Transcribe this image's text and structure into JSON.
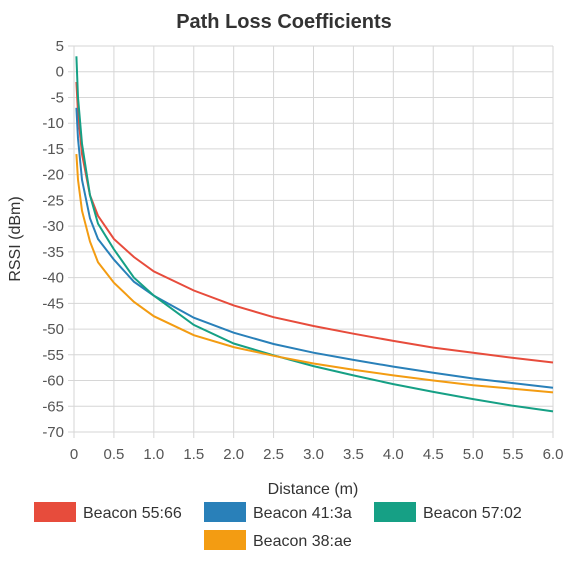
{
  "chart_data": {
    "type": "line",
    "title": "Path Loss Coefficients",
    "xlabel": "Distance (m)",
    "ylabel": "RSSI (dBm)",
    "xlim": [
      0,
      6
    ],
    "ylim": [
      -70,
      5
    ],
    "x_ticks": [
      "0",
      "0.5",
      "1.0",
      "1.5",
      "2.0",
      "2.5",
      "3.0",
      "3.5",
      "4.0",
      "4.5",
      "5.0",
      "5.5",
      "6.0"
    ],
    "y_ticks": [
      "5",
      "0",
      "-5",
      "-10",
      "-15",
      "-20",
      "-25",
      "-30",
      "-35",
      "-40",
      "-45",
      "-50",
      "-55",
      "-60",
      "-65",
      "-70"
    ],
    "grid": true,
    "legend_position": "bottom",
    "x": [
      0.03,
      0.05,
      0.1,
      0.2,
      0.3,
      0.5,
      0.75,
      1.0,
      1.5,
      2.0,
      2.5,
      3.0,
      3.5,
      4.0,
      4.5,
      5.0,
      5.5,
      6.0
    ],
    "series": [
      {
        "name": "Beacon 55:66",
        "color": "#e74c3c",
        "values": [
          -2,
          -8,
          -16,
          -24,
          -28,
          -32.5,
          -36,
          -38.8,
          -42.5,
          -45.4,
          -47.7,
          -49.4,
          -50.9,
          -52.3,
          -53.6,
          -54.6,
          -55.6,
          -56.5
        ]
      },
      {
        "name": "Beacon 41:3a",
        "color": "#2980b9",
        "values": [
          -7,
          -13,
          -21,
          -28.5,
          -32.5,
          -36.5,
          -40.8,
          -43.5,
          -47.8,
          -50.7,
          -52.9,
          -54.6,
          -56.0,
          -57.3,
          -58.5,
          -59.6,
          -60.5,
          -61.4
        ]
      },
      {
        "name": "Beacon 57:02",
        "color": "#16a085",
        "values": [
          3,
          -5,
          -14,
          -24,
          -29.5,
          -34.5,
          -40,
          -43.5,
          -49.2,
          -52.8,
          -55.1,
          -57.2,
          -59.0,
          -60.7,
          -62.2,
          -63.6,
          -64.9,
          -66.0
        ]
      },
      {
        "name": "Beacon 38:ae",
        "color": "#f39c12",
        "values": [
          -16,
          -21,
          -27,
          -33,
          -37,
          -41,
          -44.7,
          -47.5,
          -51.2,
          -53.5,
          -55.2,
          -56.7,
          -57.9,
          -59.0,
          -60.0,
          -60.9,
          -61.6,
          -62.3
        ]
      }
    ]
  }
}
